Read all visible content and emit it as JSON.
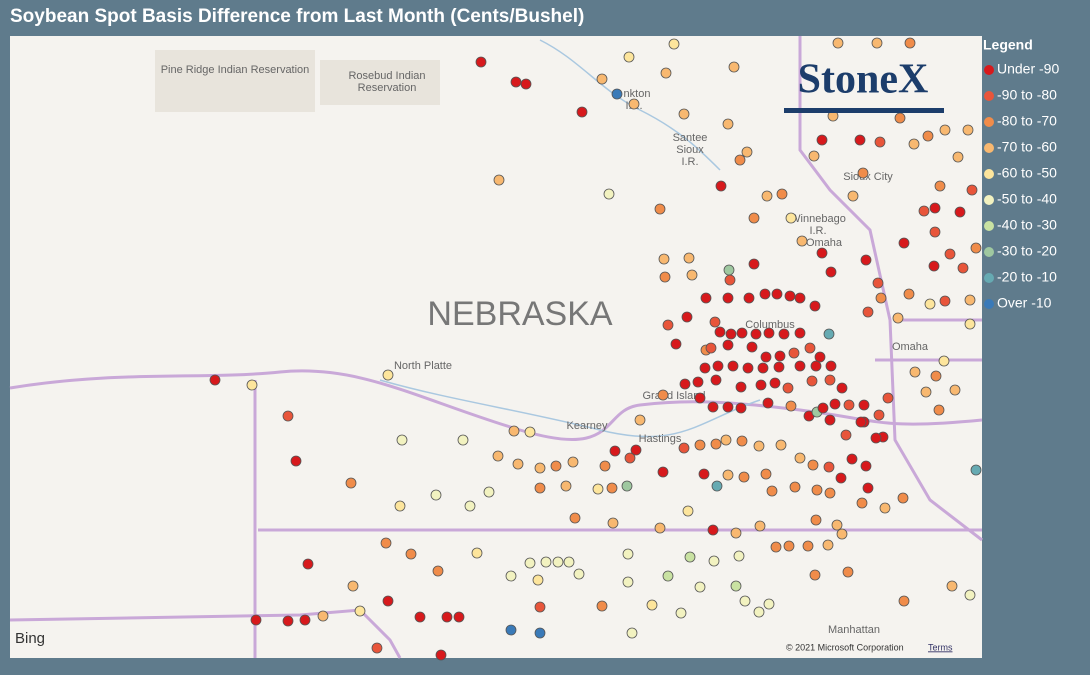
{
  "title": "Soybean Spot Basis Difference from Last Month (Cents/Bushel)",
  "legend": {
    "title": "Legend",
    "items": [
      {
        "label": "Under -90",
        "color": "#d7191c"
      },
      {
        "label": "-90 to -80",
        "color": "#e8553a"
      },
      {
        "label": "-80 to -70",
        "color": "#f08c4a"
      },
      {
        "label": "-70 to -60",
        "color": "#f8b870"
      },
      {
        "label": "-60 to -50",
        "color": "#fde59c"
      },
      {
        "label": "-50 to -40",
        "color": "#f2f2c0"
      },
      {
        "label": "-40 to -30",
        "color": "#c9e2a2"
      },
      {
        "label": "-30 to -20",
        "color": "#9fc8a0"
      },
      {
        "label": "-20 to -10",
        "color": "#66aab2"
      },
      {
        "label": "Over -10",
        "color": "#3a7ab8"
      }
    ]
  },
  "map": {
    "state_label": "NEBRASKA",
    "labels": [
      "Pine Ridge Indian Reservation",
      [
        "Rosebud Indian",
        "Reservation"
      ],
      [
        "nkton",
        "I.R."
      ],
      [
        "Santee",
        "Sioux",
        "I.R."
      ],
      "Sioux City",
      [
        "Winnebago",
        "I.R.",
        "Omaha"
      ],
      "Omaha",
      "Columbus",
      "North Platte",
      "Grand Island",
      "Kearney",
      "Hastings",
      "Manhattan"
    ],
    "logo": "StoneX",
    "provider": "Bing",
    "attribution": "© 2021 Microsoft Corporation",
    "terms": "Terms"
  }
}
